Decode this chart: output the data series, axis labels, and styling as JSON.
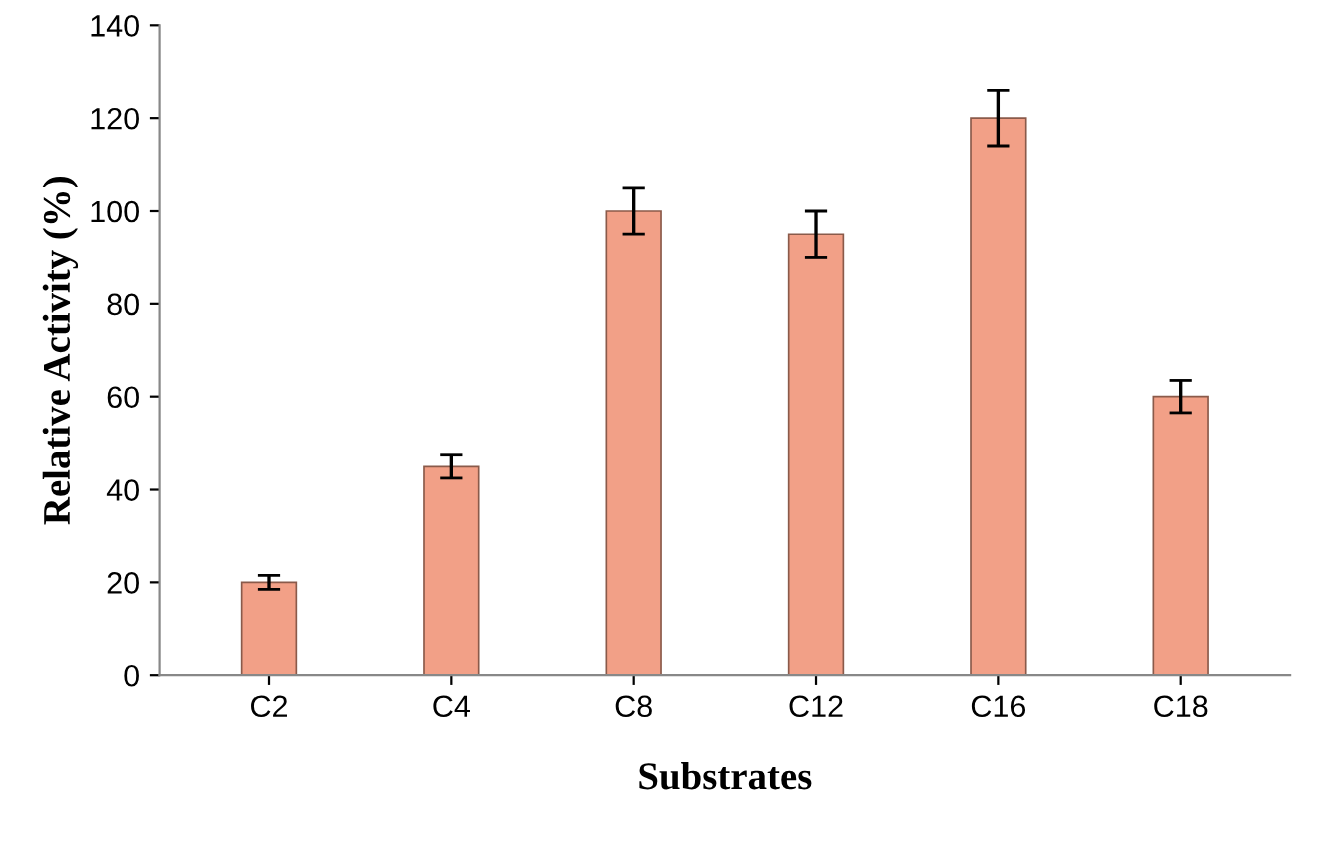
{
  "chart_data": {
    "type": "bar",
    "xlabel": "Substrates",
    "ylabel": "Relative Activity (%)",
    "categories": [
      "C2",
      "C4",
      "C8",
      "C12",
      "C16",
      "C18"
    ],
    "values": [
      20,
      45,
      100,
      95,
      120,
      60
    ],
    "errors": [
      1.5,
      2.5,
      5,
      5,
      6,
      3.5
    ],
    "color": "#f2a087",
    "ylim": [
      0,
      140
    ],
    "yticks": [
      0,
      20,
      40,
      60,
      80,
      100,
      120,
      140
    ],
    "grid": false,
    "legend": false
  }
}
